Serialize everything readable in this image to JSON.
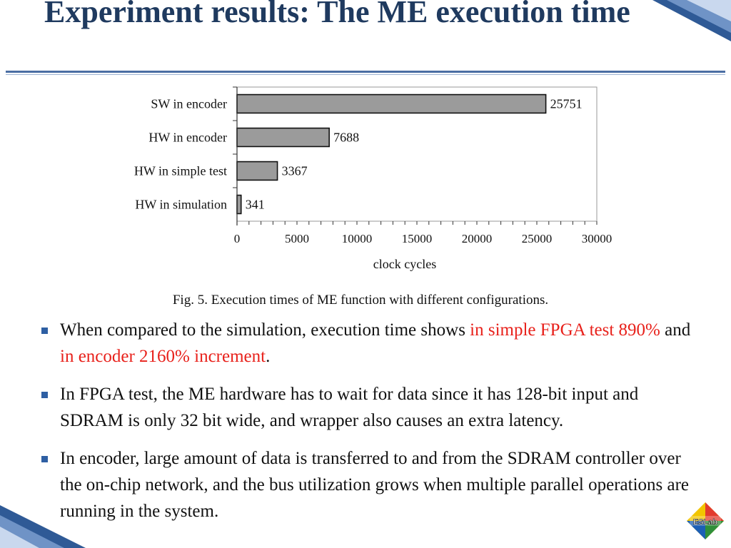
{
  "slide": {
    "title": "Experiment results: The ME execution time",
    "caption": "Fig. 5. Execution times of ME function with different configurations.",
    "logo_text": "ESLab",
    "bullets": [
      {
        "segments": [
          {
            "text": "When compared to the simulation, execution time shows ",
            "red": false
          },
          {
            "text": "in simple FPGA test 890%",
            "red": true
          },
          {
            "text": " and ",
            "red": false
          },
          {
            "text": "in encoder 2160% increment",
            "red": true
          },
          {
            "text": ".",
            "red": false
          }
        ]
      },
      {
        "segments": [
          {
            "text": "In FPGA test, the ME hardware  has to wait for data since it has 128-bit input and SDRAM is only 32 bit wide, and wrapper also causes an extra latency.",
            "red": false
          }
        ]
      },
      {
        "segments": [
          {
            "text": "In encoder, large amount of data is transferred to and from the SDRAM controller over the on-chip network, and the bus utilization grows when multiple parallel operations are running in the system.",
            "red": false
          }
        ]
      }
    ],
    "colors": {
      "title": "#1f3a5f",
      "accent": "#e8211b",
      "bar_fill": "#9b9b9b",
      "rule": "#4b6ea3"
    }
  },
  "chart_data": {
    "type": "bar",
    "orientation": "horizontal",
    "categories": [
      "SW in encoder",
      "HW in encoder",
      "HW in simple test",
      "HW in simulation"
    ],
    "values": [
      25751,
      7688,
      3367,
      341
    ],
    "data_labels": [
      "25751",
      "7688",
      "3367",
      "341"
    ],
    "xlabel": "clock cycles",
    "xlim": [
      0,
      30000
    ],
    "xticks": [
      "0",
      "5000",
      "10000",
      "15000",
      "20000",
      "25000",
      "30000"
    ],
    "grid": false,
    "legend": "none"
  }
}
